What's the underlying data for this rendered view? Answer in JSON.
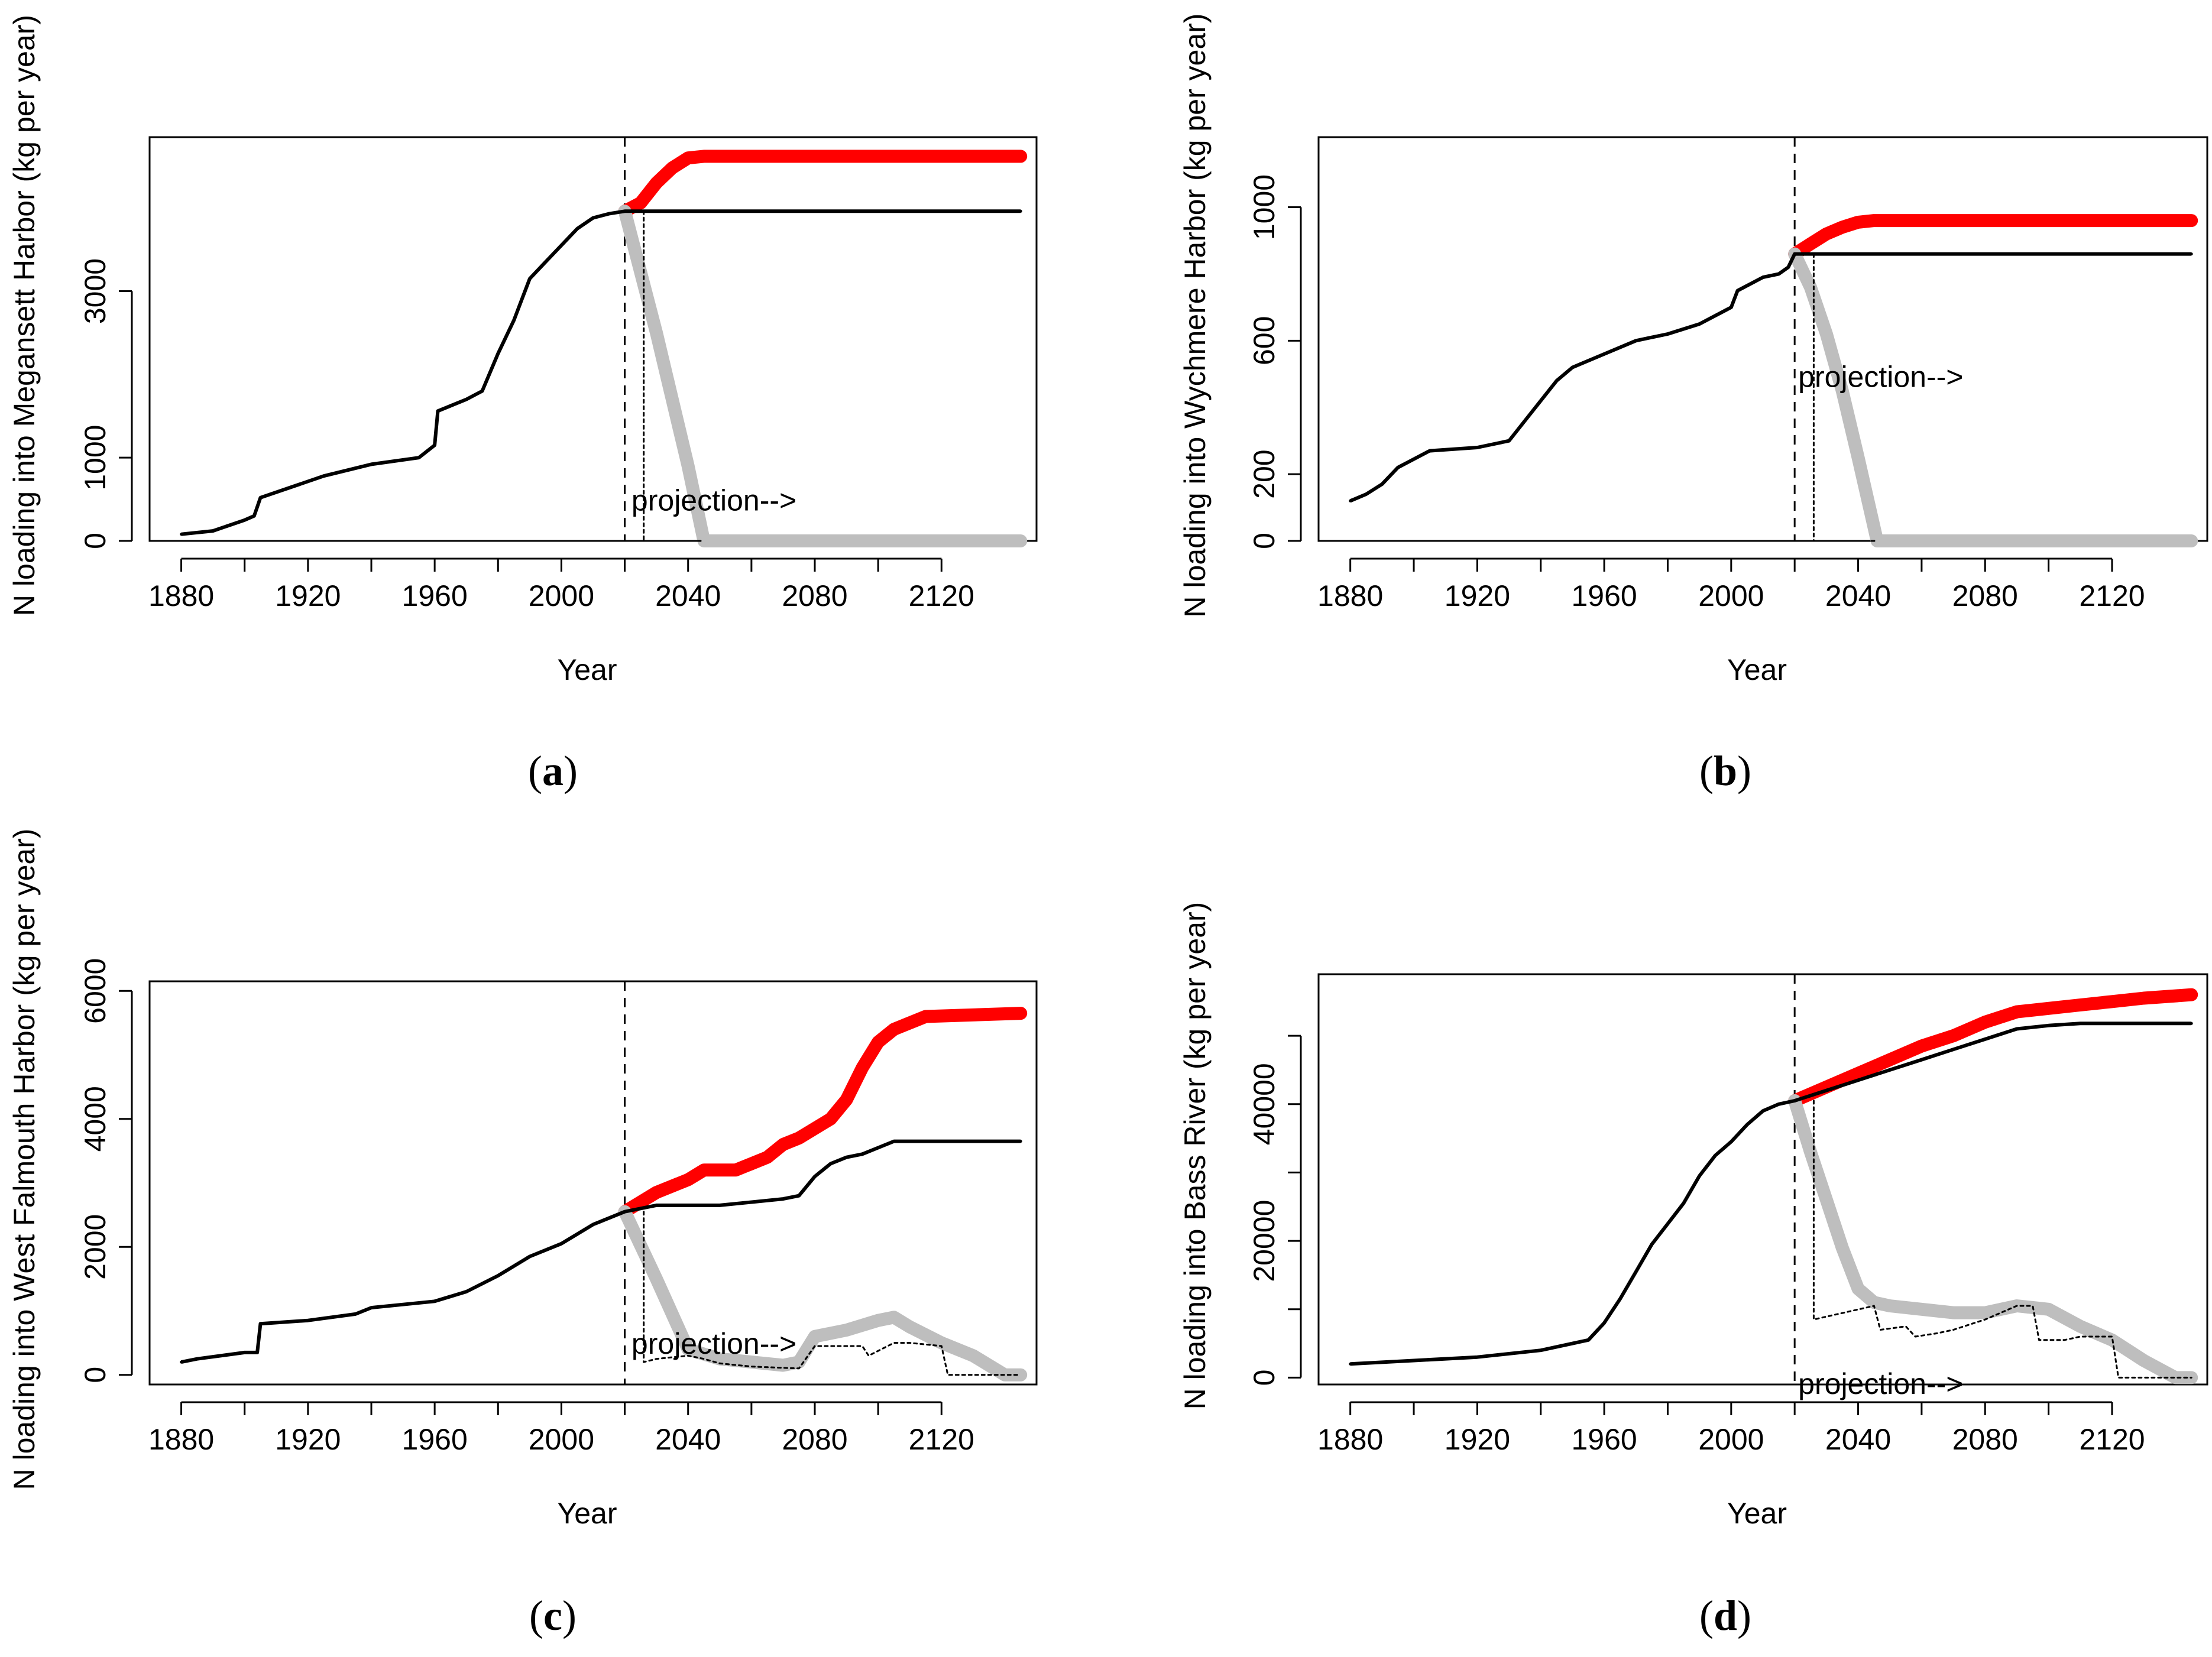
{
  "chart_data": [
    {
      "id": "a",
      "type": "line",
      "panel_label": "a",
      "xlabel": "Year",
      "ylabel": "N loading into Megansett Harbor (kg per year)",
      "xlim": [
        1870,
        2150
      ],
      "ylim": [
        0,
        4850
      ],
      "xticks": [
        1880,
        1920,
        1960,
        2000,
        2040,
        2080,
        2120
      ],
      "yticks": [
        0,
        1000,
        3000
      ],
      "annotation": "projection-->",
      "annotation_at": [
        2021,
        480
      ],
      "vline_year": 2020,
      "series": [
        {
          "name": "historical and buildout",
          "color": "#000000",
          "x": [
            1880,
            1890,
            1900,
            1903,
            1905,
            1915,
            1925,
            1940,
            1955,
            1960,
            1961,
            1970,
            1975,
            1980,
            1985,
            1990,
            1995,
            2000,
            2005,
            2010,
            2015,
            2020,
            2025,
            2030,
            2060,
            2100,
            2145
          ],
          "y": [
            80,
            120,
            250,
            300,
            520,
            650,
            780,
            920,
            1000,
            1150,
            1560,
            1700,
            1800,
            2250,
            2650,
            3150,
            3350,
            3550,
            3750,
            3880,
            3930,
            3960,
            3960,
            3960,
            3960,
            3960,
            3960
          ]
        },
        {
          "name": "upper projection",
          "color": "#ff0000",
          "x": [
            2020,
            2025,
            2030,
            2035,
            2040,
            2045,
            2060,
            2100,
            2145
          ],
          "y": [
            3960,
            4060,
            4300,
            4480,
            4600,
            4620,
            4620,
            4620,
            4620
          ]
        },
        {
          "name": "reduction projection",
          "color": "#bebebe",
          "x": [
            2020,
            2030,
            2040,
            2045,
            2060,
            2100,
            2145
          ],
          "y": [
            3960,
            2500,
            900,
            0,
            0,
            0,
            0
          ]
        },
        {
          "name": "dotted scenario",
          "color": "#000000",
          "dash": true,
          "x": [
            2026,
            2026,
            2045
          ],
          "y": [
            3960,
            0,
            0
          ]
        }
      ]
    },
    {
      "id": "b",
      "type": "line",
      "panel_label": "b",
      "xlabel": "Year",
      "ylabel": "N loading into Wychmere Harbor (kg per year)",
      "xlim": [
        1870,
        2150
      ],
      "ylim": [
        0,
        1210
      ],
      "xticks": [
        1880,
        1920,
        1960,
        2000,
        2040,
        2080,
        2120
      ],
      "yticks": [
        0,
        200,
        600,
        1000
      ],
      "annotation": "projection-->",
      "annotation_at": [
        2020,
        490
      ],
      "vline_year": 2020,
      "series": [
        {
          "name": "historical and buildout",
          "color": "#000000",
          "x": [
            1880,
            1885,
            1890,
            1895,
            1905,
            1920,
            1930,
            1935,
            1940,
            1945,
            1950,
            1960,
            1970,
            1980,
            1990,
            2000,
            2002,
            2010,
            2015,
            2018,
            2020,
            2025,
            2060,
            2100,
            2145
          ],
          "y": [
            120,
            140,
            170,
            220,
            270,
            280,
            300,
            360,
            420,
            480,
            520,
            560,
            600,
            620,
            650,
            700,
            750,
            790,
            800,
            820,
            860,
            860,
            860,
            860,
            860
          ]
        },
        {
          "name": "upper projection",
          "color": "#ff0000",
          "x": [
            2020,
            2025,
            2030,
            2035,
            2040,
            2045,
            2060,
            2100,
            2145
          ],
          "y": [
            860,
            890,
            920,
            940,
            955,
            960,
            960,
            960,
            960
          ]
        },
        {
          "name": "reduction projection",
          "color": "#bebebe",
          "x": [
            2020,
            2025,
            2030,
            2035,
            2040,
            2046,
            2060,
            2100,
            2145
          ],
          "y": [
            860,
            760,
            620,
            450,
            250,
            0,
            0,
            0,
            0
          ]
        },
        {
          "name": "dotted scenario",
          "color": "#000000",
          "dash": true,
          "x": [
            2026,
            2026,
            2046
          ],
          "y": [
            860,
            0,
            0
          ]
        }
      ]
    },
    {
      "id": "c",
      "type": "line",
      "panel_label": "c",
      "xlabel": "Year",
      "ylabel": "N loading into West Falmouth Harbor (kg per year)",
      "xlim": [
        1870,
        2150
      ],
      "ylim": [
        -150,
        6150
      ],
      "xticks": [
        1880,
        1920,
        1960,
        2000,
        2040,
        2080,
        2120
      ],
      "yticks": [
        0,
        2000,
        4000,
        6000
      ],
      "annotation": "projection-->",
      "annotation_at": [
        2021,
        480
      ],
      "vline_year": 2020,
      "series": [
        {
          "name": "historical and buildout",
          "color": "#000000",
          "x": [
            1880,
            1885,
            1900,
            1904,
            1905,
            1920,
            1935,
            1940,
            1950,
            1960,
            1970,
            1980,
            1990,
            2000,
            2010,
            2020,
            2030,
            2050,
            2070,
            2075,
            2080,
            2085,
            2090,
            2095,
            2100,
            2105,
            2145
          ],
          "y": [
            200,
            250,
            350,
            350,
            800,
            850,
            950,
            1050,
            1100,
            1150,
            1300,
            1550,
            1850,
            2050,
            2350,
            2550,
            2650,
            2650,
            2750,
            2800,
            3100,
            3300,
            3400,
            3450,
            3550,
            3650,
            3650
          ]
        },
        {
          "name": "upper projection",
          "color": "#ff0000",
          "x": [
            2020,
            2030,
            2040,
            2045,
            2055,
            2065,
            2070,
            2075,
            2085,
            2090,
            2095,
            2100,
            2105,
            2115,
            2145
          ],
          "y": [
            2550,
            2850,
            3050,
            3200,
            3200,
            3400,
            3600,
            3700,
            4000,
            4300,
            4800,
            5200,
            5400,
            5600,
            5650
          ]
        },
        {
          "name": "reduction projection",
          "color": "#bebebe",
          "x": [
            2020,
            2030,
            2040,
            2050,
            2060,
            2070,
            2075,
            2080,
            2090,
            2100,
            2105,
            2110,
            2120,
            2130,
            2140,
            2145
          ],
          "y": [
            2550,
            1500,
            400,
            250,
            200,
            150,
            200,
            600,
            700,
            850,
            900,
            750,
            500,
            300,
            0,
            0
          ]
        },
        {
          "name": "dotted scenario",
          "color": "#000000",
          "dash": true,
          "x": [
            2026,
            2026,
            2030,
            2040,
            2045,
            2050,
            2060,
            2075,
            2080,
            2095,
            2097,
            2105,
            2110,
            2120,
            2122,
            2145
          ],
          "y": [
            2550,
            200,
            250,
            300,
            250,
            180,
            130,
            100,
            450,
            450,
            300,
            500,
            500,
            450,
            0,
            0
          ]
        }
      ]
    },
    {
      "id": "d",
      "type": "line",
      "panel_label": "d",
      "xlabel": "Year",
      "ylabel": "N loading into Bass River (kg per year)",
      "xlim": [
        1870,
        2150
      ],
      "ylim": [
        -1000,
        59000
      ],
      "xticks": [
        1880,
        1920,
        1960,
        2000,
        2040,
        2080,
        2120
      ],
      "yticks": [
        0,
        20000,
        40000
      ],
      "extra_ytick_marks": [
        10000,
        30000,
        50000
      ],
      "annotation": "projection-->",
      "annotation_at": [
        2020,
        -1000
      ],
      "vline_year": 2020,
      "series": [
        {
          "name": "historical and buildout",
          "color": "#000000",
          "x": [
            1880,
            1900,
            1920,
            1940,
            1955,
            1960,
            1965,
            1970,
            1975,
            1980,
            1985,
            1990,
            1995,
            2000,
            2005,
            2010,
            2015,
            2020,
            2030,
            2040,
            2050,
            2060,
            2070,
            2080,
            2090,
            2100,
            2110,
            2145
          ],
          "y": [
            2000,
            2500,
            3000,
            4000,
            5500,
            8000,
            11500,
            15500,
            19500,
            22500,
            25500,
            29500,
            32500,
            34500,
            37000,
            39000,
            40000,
            40500,
            42000,
            43500,
            45000,
            46500,
            48000,
            49500,
            51000,
            51500,
            51800,
            51800
          ]
        },
        {
          "name": "upper projection",
          "color": "#ff0000",
          "x": [
            2020,
            2030,
            2040,
            2050,
            2060,
            2070,
            2080,
            2090,
            2100,
            2110,
            2120,
            2130,
            2145
          ],
          "y": [
            40500,
            42500,
            44500,
            46500,
            48500,
            50000,
            52000,
            53500,
            54000,
            54500,
            55000,
            55500,
            56000
          ]
        },
        {
          "name": "reduction projection",
          "color": "#bebebe",
          "x": [
            2020,
            2025,
            2030,
            2035,
            2040,
            2045,
            2050,
            2060,
            2070,
            2080,
            2090,
            2100,
            2110,
            2120,
            2130,
            2140,
            2145
          ],
          "y": [
            40500,
            33000,
            26000,
            19000,
            13000,
            11000,
            10500,
            10000,
            9500,
            9500,
            10500,
            10000,
            7500,
            5500,
            2500,
            0,
            0
          ]
        },
        {
          "name": "dotted scenario",
          "color": "#000000",
          "dash": true,
          "x": [
            2026,
            2026,
            2045,
            2047,
            2055,
            2058,
            2065,
            2070,
            2080,
            2090,
            2095,
            2097,
            2105,
            2110,
            2120,
            2122,
            2145
          ],
          "y": [
            40500,
            8500,
            10500,
            7000,
            7500,
            6000,
            6500,
            7000,
            8500,
            10500,
            10500,
            5500,
            5500,
            6000,
            6000,
            0,
            0
          ]
        }
      ]
    }
  ]
}
